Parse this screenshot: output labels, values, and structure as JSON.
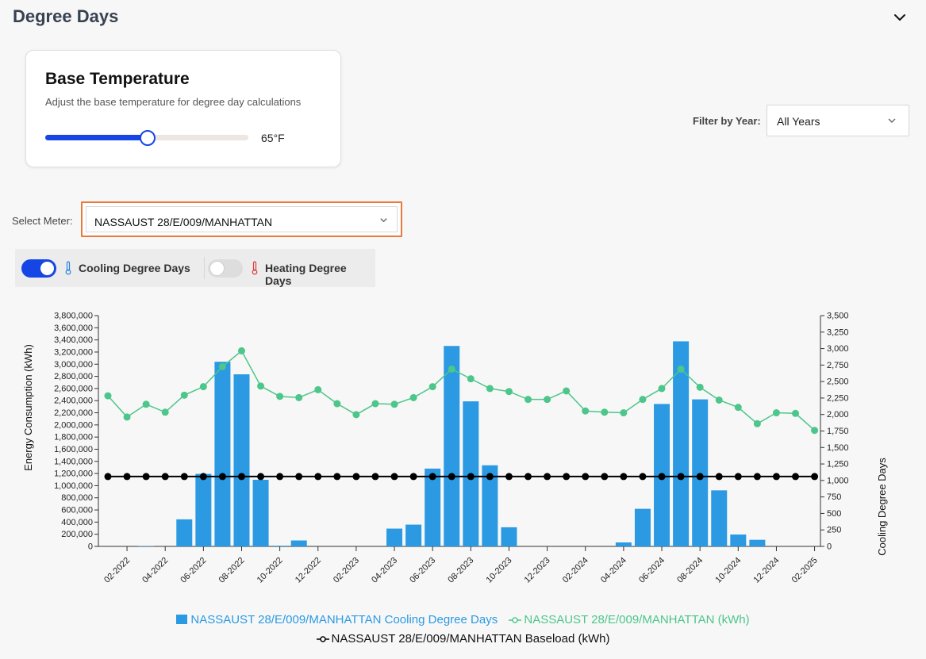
{
  "section": {
    "title": "Degree Days",
    "collapse_icon": "chevron-down-icon"
  },
  "base_temperature": {
    "title": "Base Temperature",
    "subtitle": "Adjust the base temperature for degree day calculations",
    "value_label": "65°F",
    "slider_fraction": 0.5
  },
  "filter": {
    "label": "Filter by Year:",
    "selected": "All Years"
  },
  "meter": {
    "label": "Select Meter:",
    "selected": "NASSAUST 28/E/009/MANHATTAN"
  },
  "toggles": {
    "cooling": {
      "label": "Cooling Degree Days",
      "on": true,
      "icon": "thermometer-cold-icon"
    },
    "heating": {
      "label": "Heating Degree Days",
      "on": false,
      "icon": "thermometer-hot-icon"
    }
  },
  "colors": {
    "accent": "#1645e6",
    "bar": "#2b9ae3",
    "energy_line": "#4cc68a",
    "baseload": "#000000",
    "highlight": "#ea7a3c"
  },
  "chart_data": {
    "type": "bar",
    "xlabel": "",
    "ylabel_left": "Energy Consumption (kWh)",
    "ylabel_right": "Cooling Degree Days",
    "ylim_left": [
      0,
      3800000
    ],
    "ylim_right": [
      0,
      3500
    ],
    "left_ticks": [
      "0",
      "200,000",
      "400,000",
      "600,000",
      "800,000",
      "1,000,000",
      "1,200,000",
      "1,400,000",
      "1,600,000",
      "1,800,000",
      "2,000,000",
      "2,200,000",
      "2,400,000",
      "2,600,000",
      "2,800,000",
      "3,000,000",
      "3,200,000",
      "3,400,000",
      "3,600,000",
      "3,800,000"
    ],
    "right_ticks": [
      "0",
      "250",
      "500",
      "750",
      "1,000",
      "1,250",
      "1,500",
      "1,750",
      "2,000",
      "2,250",
      "2,500",
      "2,750",
      "3,000",
      "3,250",
      "3,500"
    ],
    "x": [
      "01-2022",
      "02-2022",
      "03-2022",
      "04-2022",
      "05-2022",
      "06-2022",
      "07-2022",
      "08-2022",
      "09-2022",
      "10-2022",
      "11-2022",
      "12-2022",
      "01-2023",
      "02-2023",
      "03-2023",
      "04-2023",
      "05-2023",
      "06-2023",
      "07-2023",
      "08-2023",
      "09-2023",
      "10-2023",
      "11-2023",
      "12-2023",
      "01-2024",
      "02-2024",
      "03-2024",
      "04-2024",
      "05-2024",
      "06-2024",
      "07-2024",
      "08-2024",
      "09-2024",
      "10-2024",
      "11-2024",
      "12-2024",
      "01-2025",
      "02-2025"
    ],
    "x_tick_labels": [
      "02-2022",
      "04-2022",
      "06-2022",
      "08-2022",
      "10-2022",
      "12-2022",
      "02-2023",
      "04-2023",
      "06-2023",
      "08-2023",
      "10-2023",
      "12-2023",
      "02-2024",
      "04-2024",
      "06-2024",
      "08-2024",
      "10-2024",
      "12-2024",
      "02-2025"
    ],
    "series": [
      {
        "name": "NASSAUST 28/E/009/MANHATTAN Cooling Degree Days",
        "type": "bar",
        "axis": "right",
        "values": [
          0,
          0,
          5,
          0,
          410,
          1100,
          2800,
          2610,
          1010,
          10,
          90,
          0,
          0,
          0,
          0,
          270,
          330,
          1180,
          3040,
          2200,
          1230,
          290,
          0,
          0,
          0,
          0,
          0,
          60,
          570,
          2160,
          3110,
          2230,
          850,
          180,
          100,
          0,
          0,
          0
        ]
      },
      {
        "name": "NASSAUST 28/E/009/MANHATTAN (kWh)",
        "type": "line",
        "axis": "left",
        "values": [
          2480000,
          2130000,
          2340000,
          2210000,
          2490000,
          2630000,
          2960000,
          3220000,
          2640000,
          2470000,
          2450000,
          2580000,
          2350000,
          2170000,
          2350000,
          2340000,
          2450000,
          2630000,
          2920000,
          2760000,
          2600000,
          2550000,
          2420000,
          2420000,
          2560000,
          2230000,
          2210000,
          2200000,
          2420000,
          2600000,
          2920000,
          2620000,
          2410000,
          2290000,
          2020000,
          2200000,
          2190000,
          1910000
        ]
      },
      {
        "name": "NASSAUST 28/E/009/MANHATTAN Baseload (kWh)",
        "type": "line",
        "axis": "left",
        "values": [
          1150000,
          1150000,
          1150000,
          1150000,
          1150000,
          1150000,
          1150000,
          1150000,
          1150000,
          1150000,
          1150000,
          1150000,
          1150000,
          1150000,
          1150000,
          1150000,
          1150000,
          1150000,
          1150000,
          1150000,
          1150000,
          1150000,
          1150000,
          1150000,
          1150000,
          1150000,
          1150000,
          1150000,
          1150000,
          1150000,
          1150000,
          1150000,
          1150000,
          1150000,
          1150000,
          1150000,
          1150000,
          1150000
        ]
      }
    ],
    "grid": false,
    "legend_position": "bottom"
  }
}
